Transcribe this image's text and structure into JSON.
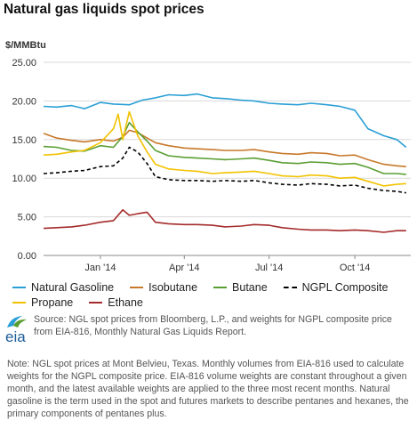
{
  "title": "Natural gas liquids spot prices",
  "unit_label": "$/MMBtu",
  "legend": [
    {
      "name": "Natural Gasoline",
      "color": "#2a9fd6",
      "dashed": false
    },
    {
      "name": "Isobutane",
      "color": "#c8782a",
      "dashed": false
    },
    {
      "name": "Butane",
      "color": "#5a9e32",
      "dashed": false
    },
    {
      "name": "NGPL Composite",
      "color": "#000000",
      "dashed": true
    },
    {
      "name": "Propane",
      "color": "#f2c200",
      "dashed": false
    },
    {
      "name": "Ethane",
      "color": "#a52a2a",
      "dashed": false
    }
  ],
  "logo_text": "eia",
  "source_text": "Source: NGL spot prices from Bloomberg, L.P., and weights for NGPL composite price from EIA-816, Monthly Natural Gas Liquids Report.",
  "note_text": "Note: NGL spot prices at Mont Belvieu, Texas. Monthly volumes from EIA-816 used to calculate weights for the NGPL composite price. EIA-816 volume weights are constant throughout a given month, and the latest available weights are applied to the three most recent months. Natural gasoline is the term used in the spot and futures markets to describe pentanes and hexanes, the primary components of pentanes plus.",
  "chart_data": {
    "type": "line",
    "title": "Natural gas liquids spot prices",
    "ylabel": "$/MMBtu",
    "xlabel": "",
    "ylim": [
      0,
      25
    ],
    "yticks": [
      0,
      5,
      10,
      15,
      20,
      25
    ],
    "ytick_labels": [
      "0.00",
      "5.00",
      "10.00",
      "15.00",
      "20.00",
      "25.00"
    ],
    "xlim": [
      "2013-11-01",
      "2014-11-30"
    ],
    "xticks": [
      "2014-01-01",
      "2014-04-01",
      "2014-07-01",
      "2014-10-01"
    ],
    "xtick_labels": [
      "Jan '14",
      "Apr '14",
      "Jul '14",
      "Oct '14"
    ],
    "grid": "horizontal",
    "legend_position": "bottom",
    "series": [
      {
        "name": "Natural Gasoline",
        "color": "#2a9fd6",
        "x": [
          "2013-11-01",
          "2013-11-15",
          "2013-12-01",
          "2013-12-15",
          "2014-01-01",
          "2014-01-15",
          "2014-02-01",
          "2014-02-15",
          "2014-03-01",
          "2014-03-15",
          "2014-04-01",
          "2014-04-15",
          "2014-05-01",
          "2014-05-15",
          "2014-06-01",
          "2014-06-15",
          "2014-07-01",
          "2014-07-15",
          "2014-08-01",
          "2014-08-15",
          "2014-09-01",
          "2014-09-15",
          "2014-10-01",
          "2014-10-15",
          "2014-11-01",
          "2014-11-15",
          "2014-11-25"
        ],
        "values": [
          19.3,
          19.2,
          19.4,
          19.0,
          19.8,
          19.6,
          19.5,
          20.1,
          20.4,
          20.8,
          20.7,
          20.9,
          20.4,
          20.3,
          20.1,
          20.0,
          19.7,
          19.6,
          19.5,
          19.7,
          19.5,
          19.3,
          18.8,
          16.4,
          15.5,
          15.0,
          14.0
        ]
      },
      {
        "name": "Isobutane",
        "color": "#c8782a",
        "x": [
          "2013-11-01",
          "2013-11-15",
          "2013-12-01",
          "2013-12-15",
          "2014-01-01",
          "2014-01-15",
          "2014-01-25",
          "2014-02-01",
          "2014-02-10",
          "2014-02-20",
          "2014-03-01",
          "2014-03-15",
          "2014-04-01",
          "2014-04-15",
          "2014-05-01",
          "2014-05-15",
          "2014-06-01",
          "2014-06-15",
          "2014-07-01",
          "2014-07-15",
          "2014-08-01",
          "2014-08-15",
          "2014-09-01",
          "2014-09-15",
          "2014-10-01",
          "2014-10-15",
          "2014-11-01",
          "2014-11-15",
          "2014-11-25"
        ],
        "values": [
          15.8,
          15.2,
          14.9,
          14.7,
          15.0,
          14.8,
          15.3,
          16.2,
          15.9,
          15.2,
          14.6,
          14.2,
          13.9,
          13.8,
          13.7,
          13.6,
          13.6,
          13.7,
          13.4,
          13.2,
          13.1,
          13.3,
          13.2,
          12.9,
          13.0,
          12.4,
          11.8,
          11.6,
          11.5
        ]
      },
      {
        "name": "Butane",
        "color": "#5a9e32",
        "x": [
          "2013-11-01",
          "2013-11-15",
          "2013-12-01",
          "2013-12-15",
          "2014-01-01",
          "2014-01-15",
          "2014-01-25",
          "2014-02-01",
          "2014-02-10",
          "2014-02-20",
          "2014-03-01",
          "2014-03-15",
          "2014-04-01",
          "2014-04-15",
          "2014-05-01",
          "2014-05-15",
          "2014-06-01",
          "2014-06-15",
          "2014-07-01",
          "2014-07-15",
          "2014-08-01",
          "2014-08-15",
          "2014-09-01",
          "2014-09-15",
          "2014-10-01",
          "2014-10-15",
          "2014-11-01",
          "2014-11-15",
          "2014-11-25"
        ],
        "values": [
          14.1,
          14.0,
          13.6,
          13.5,
          14.2,
          14.0,
          15.4,
          17.2,
          16.0,
          14.8,
          13.6,
          12.9,
          12.7,
          12.6,
          12.5,
          12.4,
          12.5,
          12.6,
          12.3,
          12.0,
          11.9,
          12.1,
          12.0,
          11.8,
          11.9,
          11.4,
          10.6,
          10.6,
          10.5
        ]
      },
      {
        "name": "NGPL Composite",
        "color": "#000000",
        "dashed": true,
        "x": [
          "2013-11-01",
          "2013-11-15",
          "2013-12-01",
          "2013-12-15",
          "2014-01-01",
          "2014-01-15",
          "2014-01-25",
          "2014-02-01",
          "2014-02-10",
          "2014-02-20",
          "2014-03-01",
          "2014-03-15",
          "2014-04-01",
          "2014-04-15",
          "2014-05-01",
          "2014-05-15",
          "2014-06-01",
          "2014-06-15",
          "2014-07-01",
          "2014-07-15",
          "2014-08-01",
          "2014-08-15",
          "2014-09-01",
          "2014-09-15",
          "2014-10-01",
          "2014-10-15",
          "2014-11-01",
          "2014-11-15",
          "2014-11-25"
        ],
        "values": [
          10.6,
          10.7,
          10.9,
          11.0,
          11.5,
          11.6,
          12.6,
          14.0,
          13.4,
          11.9,
          10.2,
          9.8,
          9.7,
          9.7,
          9.6,
          9.7,
          9.6,
          9.7,
          9.4,
          9.2,
          9.1,
          9.3,
          9.2,
          9.0,
          9.1,
          8.7,
          8.4,
          8.3,
          8.1
        ]
      },
      {
        "name": "Propane",
        "color": "#f2c200",
        "x": [
          "2013-11-01",
          "2013-11-15",
          "2013-12-01",
          "2013-12-15",
          "2014-01-01",
          "2014-01-15",
          "2014-01-20",
          "2014-01-25",
          "2014-02-01",
          "2014-02-10",
          "2014-02-20",
          "2014-03-01",
          "2014-03-15",
          "2014-04-01",
          "2014-04-15",
          "2014-05-01",
          "2014-05-15",
          "2014-06-01",
          "2014-06-15",
          "2014-07-01",
          "2014-07-15",
          "2014-08-01",
          "2014-08-15",
          "2014-09-01",
          "2014-09-15",
          "2014-10-01",
          "2014-10-15",
          "2014-11-01",
          "2014-11-15",
          "2014-11-25"
        ],
        "values": [
          13.0,
          13.1,
          13.4,
          13.6,
          14.6,
          16.4,
          18.3,
          15.0,
          18.6,
          15.5,
          13.4,
          11.8,
          11.2,
          11.0,
          10.9,
          10.6,
          10.7,
          10.8,
          10.9,
          10.6,
          10.3,
          10.2,
          10.4,
          10.3,
          10.0,
          10.1,
          9.6,
          9.0,
          9.2,
          9.3
        ]
      },
      {
        "name": "Ethane",
        "color": "#a52a2a",
        "x": [
          "2013-11-01",
          "2013-11-15",
          "2013-12-01",
          "2013-12-15",
          "2014-01-01",
          "2014-01-15",
          "2014-01-25",
          "2014-02-01",
          "2014-02-10",
          "2014-02-20",
          "2014-03-01",
          "2014-03-15",
          "2014-04-01",
          "2014-04-15",
          "2014-05-01",
          "2014-05-15",
          "2014-06-01",
          "2014-06-15",
          "2014-07-01",
          "2014-07-15",
          "2014-08-01",
          "2014-08-15",
          "2014-09-01",
          "2014-09-15",
          "2014-10-01",
          "2014-10-15",
          "2014-11-01",
          "2014-11-15",
          "2014-11-25"
        ],
        "values": [
          3.5,
          3.6,
          3.7,
          3.9,
          4.3,
          4.5,
          5.9,
          5.2,
          5.4,
          5.6,
          4.3,
          4.1,
          4.0,
          4.0,
          3.9,
          3.7,
          3.8,
          4.0,
          3.9,
          3.6,
          3.4,
          3.3,
          3.3,
          3.2,
          3.3,
          3.2,
          3.0,
          3.2,
          3.2
        ]
      }
    ]
  }
}
